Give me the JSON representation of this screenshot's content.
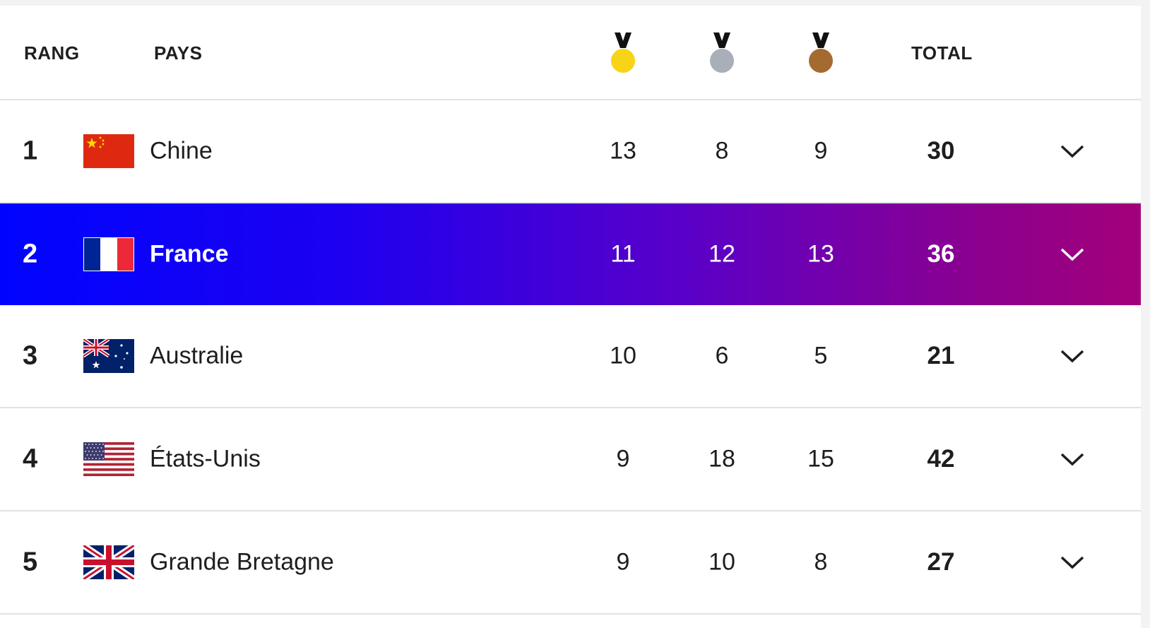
{
  "header": {
    "rank_label": "RANG",
    "country_label": "PAYS",
    "total_label": "TOTAL",
    "medal_icons": [
      "gold-medal-icon",
      "silver-medal-icon",
      "bronze-medal-icon"
    ]
  },
  "colors": {
    "gold": "#f7d417",
    "silver": "#a9afb8",
    "bronze": "#a56a2f",
    "highlight_start": "#0004ff",
    "highlight_end": "#a3007a"
  },
  "rows": [
    {
      "rank": "1",
      "country": "Chine",
      "flag": "china-flag-icon",
      "gold": "13",
      "silver": "8",
      "bronze": "9",
      "total": "30"
    },
    {
      "rank": "2",
      "country": "France",
      "flag": "france-flag-icon",
      "gold": "11",
      "silver": "12",
      "bronze": "13",
      "total": "36"
    },
    {
      "rank": "3",
      "country": "Australie",
      "flag": "australia-flag-icon",
      "gold": "10",
      "silver": "6",
      "bronze": "5",
      "total": "21"
    },
    {
      "rank": "4",
      "country": "États-Unis",
      "flag": "usa-flag-icon",
      "gold": "9",
      "silver": "18",
      "bronze": "15",
      "total": "42"
    },
    {
      "rank": "5",
      "country": "Grande Bretagne",
      "flag": "uk-flag-icon",
      "gold": "9",
      "silver": "10",
      "bronze": "8",
      "total": "27"
    }
  ]
}
